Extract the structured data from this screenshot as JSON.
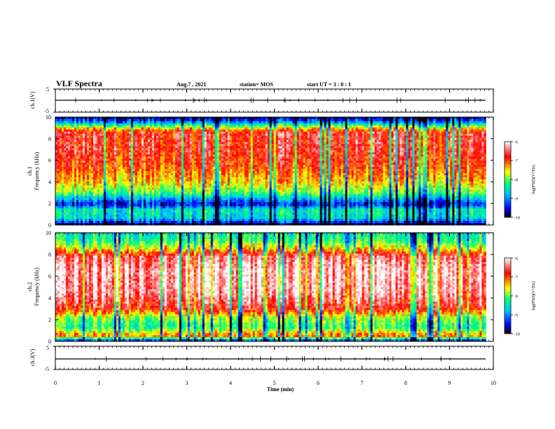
{
  "header": {
    "title": "VLF Spectra",
    "date": "Aug.7 , 2021",
    "station": "station= MOS",
    "start_ut": "start  UT  =   3  : 0   : 1"
  },
  "colors": {
    "colormap": [
      "#000000",
      "#0000ff",
      "#00c0ff",
      "#00ff80",
      "#ffff00",
      "#ff0000",
      "#ffffff"
    ]
  },
  "chart_data": [
    {
      "type": "line",
      "name": "ch1-waveform",
      "ylabel": "ch.1(V)",
      "ylim": [
        -5,
        5
      ],
      "yticks": [
        "5",
        "-5"
      ],
      "trace_level": 0
    },
    {
      "type": "heatmap",
      "name": "ch1-spectrogram",
      "ylabel": "ch.1\nFrequency (kHz)",
      "ylabel_lines": [
        "ch.1",
        "Frequency (kHz)"
      ],
      "ylim": [
        0,
        10
      ],
      "yticks": [
        "0",
        "2",
        "4",
        "6",
        "8",
        "10"
      ],
      "colorbar": {
        "label": "log(PSD)(V²/Hz)",
        "range": [
          -10,
          -6
        ],
        "ticks": [
          "-6",
          "-7",
          "-8",
          "-9",
          "-10"
        ]
      },
      "profile": [
        {
          "f": 0.0,
          "level": 0.0
        },
        {
          "f": 0.6,
          "level": 0.35
        },
        {
          "f": 1.4,
          "level": 0.4
        },
        {
          "f": 1.9,
          "level": 0.12
        },
        {
          "f": 2.3,
          "level": 0.25
        },
        {
          "f": 3.0,
          "level": 0.5
        },
        {
          "f": 4.0,
          "level": 0.64
        },
        {
          "f": 5.5,
          "level": 0.76
        },
        {
          "f": 7.0,
          "level": 0.82
        },
        {
          "f": 8.6,
          "level": 0.82
        },
        {
          "f": 9.1,
          "level": 0.55
        },
        {
          "f": 9.6,
          "level": 0.2
        },
        {
          "f": 10.0,
          "level": 0.05
        }
      ]
    },
    {
      "type": "heatmap",
      "name": "ch2-spectrogram",
      "ylabel": "ch.2\nFrequency (kHz)",
      "ylabel_lines": [
        "ch.2",
        "Frequency (kHz)"
      ],
      "ylim": [
        0,
        10
      ],
      "yticks": [
        "0",
        "2",
        "4",
        "6",
        "8",
        "10"
      ],
      "colorbar": {
        "label": "log(PSD)(V²/Hz)",
        "range": [
          -10,
          -6
        ],
        "ticks": [
          "-6",
          "-7",
          "-8",
          "-9",
          "-10"
        ]
      },
      "profile": [
        {
          "f": 0.0,
          "level": 0.1
        },
        {
          "f": 0.5,
          "level": 0.72
        },
        {
          "f": 1.3,
          "level": 0.45
        },
        {
          "f": 2.2,
          "level": 0.55
        },
        {
          "f": 3.0,
          "level": 0.8
        },
        {
          "f": 4.5,
          "level": 0.93
        },
        {
          "f": 6.5,
          "level": 0.95
        },
        {
          "f": 7.8,
          "level": 0.88
        },
        {
          "f": 8.6,
          "level": 0.6
        },
        {
          "f": 9.3,
          "level": 0.45
        },
        {
          "f": 10.0,
          "level": 0.4
        }
      ]
    },
    {
      "type": "line",
      "name": "ch3-waveform",
      "ylabel": "ch.3(V)",
      "ylim": [
        -5,
        5
      ],
      "yticks": [
        "5",
        "-5"
      ],
      "trace_level": 0
    }
  ],
  "xaxis": {
    "label": "Time (min)",
    "xlim": [
      0,
      10
    ],
    "ticks": [
      "0",
      "1",
      "2",
      "3",
      "4",
      "5",
      "6",
      "7",
      "8",
      "9",
      "10"
    ],
    "data_end": 9.83
  }
}
